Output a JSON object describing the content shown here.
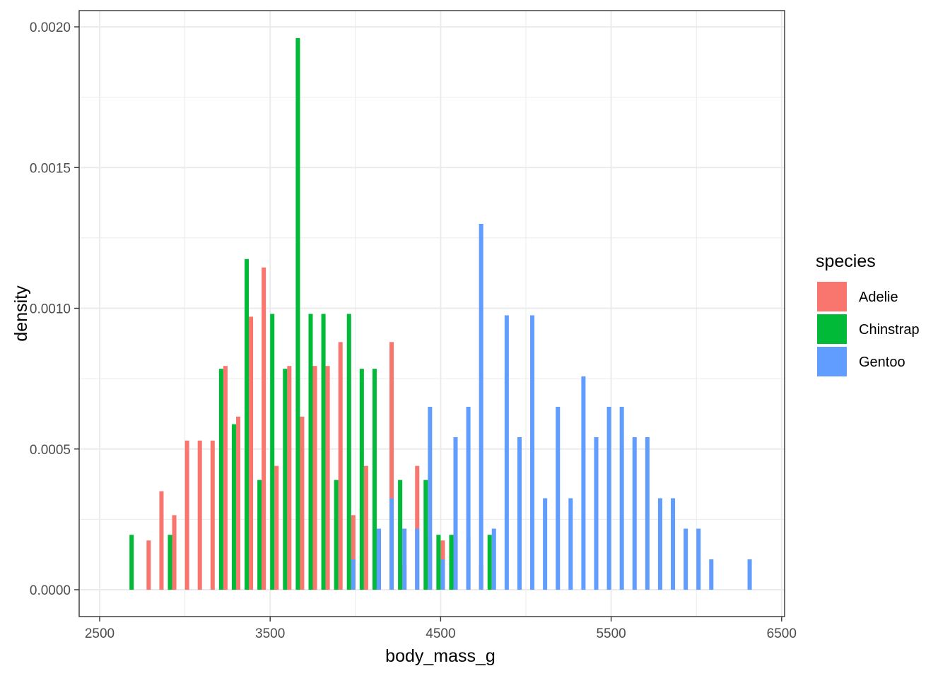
{
  "chart_data": {
    "type": "bar",
    "title": "",
    "xlabel": "body_mass_g",
    "ylabel": "density",
    "xlim": [
      2500,
      6500
    ],
    "ylim": [
      0,
      0.002
    ],
    "x_ticks": [
      "2500",
      "3500",
      "4500",
      "5500",
      "6500"
    ],
    "y_ticks": [
      "0.0000",
      "0.0005",
      "0.0010",
      "0.0015",
      "0.0020"
    ],
    "grid": true,
    "legend": {
      "title": "species",
      "position": "right"
    },
    "bin_width": 75,
    "series": [
      {
        "name": "Adelie",
        "color": "#F8766D",
        "bins": [
          {
            "x": 2812.5,
            "y": 0.000175
          },
          {
            "x": 2887.5,
            "y": 0.00035
          },
          {
            "x": 2962.5,
            "y": 0.000265
          },
          {
            "x": 3037.5,
            "y": 0.00053
          },
          {
            "x": 3112.5,
            "y": 0.00053
          },
          {
            "x": 3187.5,
            "y": 0.00053
          },
          {
            "x": 3262.5,
            "y": 0.000795
          },
          {
            "x": 3337.5,
            "y": 0.000615
          },
          {
            "x": 3412.5,
            "y": 0.00097
          },
          {
            "x": 3487.5,
            "y": 0.001145
          },
          {
            "x": 3562.5,
            "y": 0.00044
          },
          {
            "x": 3637.5,
            "y": 0.000795
          },
          {
            "x": 3712.5,
            "y": 0.000615
          },
          {
            "x": 3787.5,
            "y": 0.000795
          },
          {
            "x": 3862.5,
            "y": 0.000795
          },
          {
            "x": 3937.5,
            "y": 0.00088
          },
          {
            "x": 4012.5,
            "y": 0.000265
          },
          {
            "x": 4087.5,
            "y": 0.00044
          },
          {
            "x": 4162.5,
            "y": 0.000175
          },
          {
            "x": 4237.5,
            "y": 0.00088
          },
          {
            "x": 4312.5,
            "y": 8.8e-05
          },
          {
            "x": 4387.5,
            "y": 0.00044
          },
          {
            "x": 4462.5,
            "y": 0.000175
          },
          {
            "x": 4537.5,
            "y": 0.000175
          },
          {
            "x": 4612.5,
            "y": 0.000175
          },
          {
            "x": 4687.5,
            "y": 0.000175
          },
          {
            "x": 4762.5,
            "y": 8.8e-05
          }
        ]
      },
      {
        "name": "Chinstrap",
        "color": "#00BA38",
        "bins": [
          {
            "x": 2687.5,
            "y": 0.000195
          },
          {
            "x": 2912.5,
            "y": 0.000195
          },
          {
            "x": 3212.5,
            "y": 0.000785
          },
          {
            "x": 3287.5,
            "y": 0.000588
          },
          {
            "x": 3362.5,
            "y": 0.001175
          },
          {
            "x": 3437.5,
            "y": 0.00039
          },
          {
            "x": 3512.5,
            "y": 0.00098
          },
          {
            "x": 3587.5,
            "y": 0.000785
          },
          {
            "x": 3662.5,
            "y": 0.00196
          },
          {
            "x": 3737.5,
            "y": 0.00098
          },
          {
            "x": 3812.5,
            "y": 0.00098
          },
          {
            "x": 3887.5,
            "y": 0.00039
          },
          {
            "x": 3962.5,
            "y": 0.00098
          },
          {
            "x": 4037.5,
            "y": 0.000785
          },
          {
            "x": 4112.5,
            "y": 0.000785
          },
          {
            "x": 4262.5,
            "y": 0.00039
          },
          {
            "x": 4412.5,
            "y": 0.00039
          },
          {
            "x": 4487.5,
            "y": 0.000195
          },
          {
            "x": 4562.5,
            "y": 0.000195
          },
          {
            "x": 4787.5,
            "y": 0.000195
          }
        ]
      },
      {
        "name": "Gentoo",
        "color": "#619CFF",
        "bins": [
          {
            "x": 3962.5,
            "y": 0.000108
          },
          {
            "x": 4112.5,
            "y": 0.000217
          },
          {
            "x": 4187.5,
            "y": 0.000325
          },
          {
            "x": 4262.5,
            "y": 0.000217
          },
          {
            "x": 4337.5,
            "y": 0.000217
          },
          {
            "x": 4412.5,
            "y": 0.00065
          },
          {
            "x": 4487.5,
            "y": 0.000108
          },
          {
            "x": 4562.5,
            "y": 0.000542
          },
          {
            "x": 4637.5,
            "y": 0.00065
          },
          {
            "x": 4712.5,
            "y": 0.0013
          },
          {
            "x": 4787.5,
            "y": 0.000217
          },
          {
            "x": 4862.5,
            "y": 0.000975
          },
          {
            "x": 4937.5,
            "y": 0.000542
          },
          {
            "x": 5012.5,
            "y": 0.000975
          },
          {
            "x": 5087.5,
            "y": 0.000325
          },
          {
            "x": 5162.5,
            "y": 0.00065
          },
          {
            "x": 5237.5,
            "y": 0.000325
          },
          {
            "x": 5312.5,
            "y": 0.000758
          },
          {
            "x": 5387.5,
            "y": 0.000542
          },
          {
            "x": 5462.5,
            "y": 0.00065
          },
          {
            "x": 5537.5,
            "y": 0.00065
          },
          {
            "x": 5612.5,
            "y": 0.000542
          },
          {
            "x": 5687.5,
            "y": 0.000542
          },
          {
            "x": 5762.5,
            "y": 0.000325
          },
          {
            "x": 5837.5,
            "y": 0.000325
          },
          {
            "x": 5912.5,
            "y": 0.000217
          },
          {
            "x": 5987.5,
            "y": 0.000217
          },
          {
            "x": 6062.5,
            "y": 0.000108
          },
          {
            "x": 6287.5,
            "y": 0.000108
          }
        ]
      }
    ]
  }
}
